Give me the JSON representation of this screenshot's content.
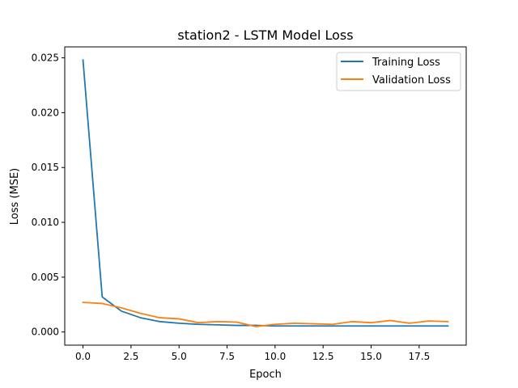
{
  "chart_data": {
    "type": "line",
    "title": "station2 - LSTM Model Loss",
    "xlabel": "Epoch",
    "ylabel": "Loss (MSE)",
    "xlim": [
      -0.95,
      19.95
    ],
    "ylim": [
      -0.0012,
      0.026
    ],
    "x_ticks": [
      0,
      2.5,
      5,
      7.5,
      10,
      12.5,
      15,
      17.5
    ],
    "x_tick_labels": [
      "0.0",
      "2.5",
      "5.0",
      "7.5",
      "10.0",
      "12.5",
      "15.0",
      "17.5"
    ],
    "y_ticks": [
      0,
      0.005,
      0.01,
      0.015,
      0.02,
      0.025
    ],
    "y_tick_labels": [
      "0.000",
      "0.005",
      "0.010",
      "0.015",
      "0.020",
      "0.025"
    ],
    "grid": false,
    "legend_position": "top-right",
    "x": [
      0,
      1,
      2,
      3,
      4,
      5,
      6,
      7,
      8,
      9,
      10,
      11,
      12,
      13,
      14,
      15,
      16,
      17,
      18,
      19
    ],
    "series": [
      {
        "name": "Training Loss",
        "color": "#1f77b4",
        "values": [
          0.0248,
          0.0032,
          0.0019,
          0.0013,
          0.00095,
          0.0008,
          0.0007,
          0.00065,
          0.0006,
          0.0006,
          0.00055,
          0.00055,
          0.00055,
          0.00055,
          0.00055,
          0.00055,
          0.00055,
          0.00055,
          0.00055,
          0.00055
        ]
      },
      {
        "name": "Validation Loss",
        "color": "#ff7f0e",
        "values": [
          0.0027,
          0.0026,
          0.0022,
          0.0017,
          0.0013,
          0.0012,
          0.00085,
          0.00095,
          0.0009,
          0.0005,
          0.0007,
          0.0008,
          0.00075,
          0.0007,
          0.00095,
          0.00085,
          0.00105,
          0.0008,
          0.001,
          0.00095
        ]
      }
    ]
  }
}
